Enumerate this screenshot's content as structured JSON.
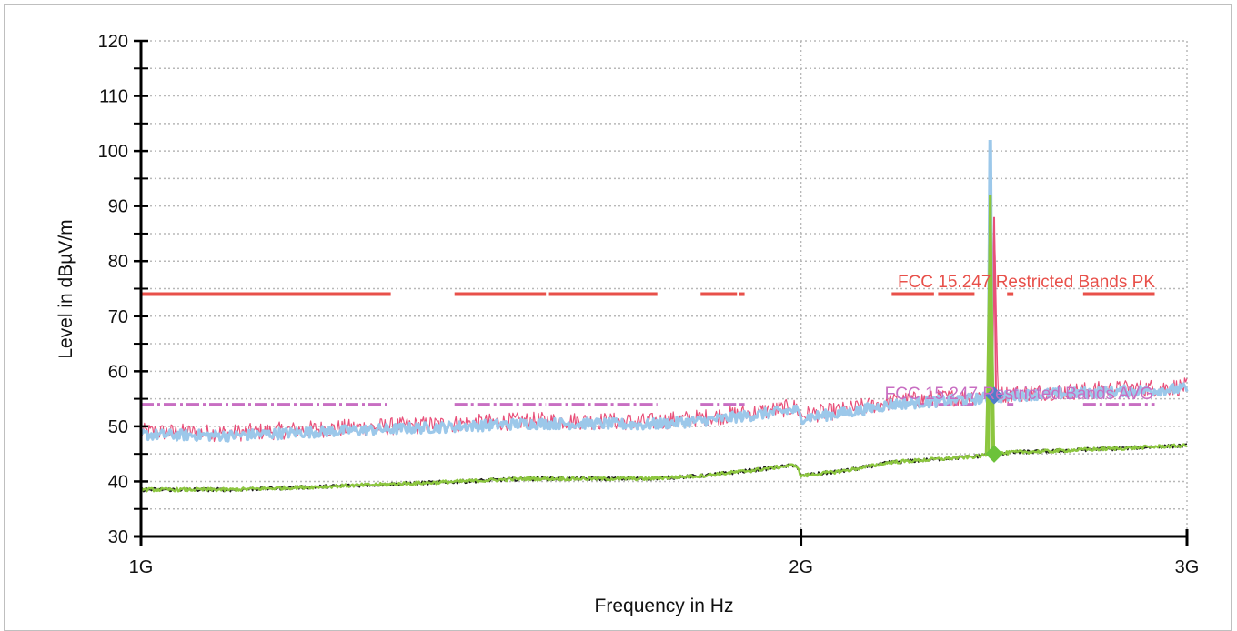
{
  "chart_data": {
    "type": "line",
    "xlabel": "Frequency in Hz",
    "ylabel": "Level in dBµV/m",
    "x_scale": "log",
    "xlim": [
      1000000000,
      3000000000
    ],
    "ylim": [
      30,
      120
    ],
    "grid": true,
    "x_ticks": [
      {
        "value": 1000000000,
        "label": "1G"
      },
      {
        "value": 2000000000,
        "label": "2G"
      },
      {
        "value": 3000000000,
        "label": "3G"
      }
    ],
    "y_ticks": [
      30,
      40,
      50,
      60,
      70,
      80,
      90,
      100,
      110,
      120
    ],
    "limit_lines": [
      {
        "name": "FCC 15.247 Restricted Bands PK",
        "level": 74,
        "color": "#e8504a",
        "segments": [
          [
            1000000000,
            1300000000
          ],
          [
            1390000000,
            1530000000
          ],
          [
            1535000000,
            1720000000
          ],
          [
            1800000000,
            1870000000
          ],
          [
            1875000000,
            1885000000
          ],
          [
            2200000000,
            2300000000
          ],
          [
            2310000000,
            2400000000
          ],
          [
            2483500000,
            2500000000
          ],
          [
            2690000000,
            2900000000
          ]
        ]
      },
      {
        "name": "FCC 15.247 Restricted Bands AVG",
        "level": 54,
        "color": "#c86ec2",
        "segments": [
          [
            1000000000,
            1300000000
          ],
          [
            1390000000,
            1530000000
          ],
          [
            1535000000,
            1720000000
          ],
          [
            1800000000,
            1870000000
          ],
          [
            1875000000,
            1885000000
          ],
          [
            2200000000,
            2300000000
          ],
          [
            2310000000,
            2400000000
          ],
          [
            2483500000,
            2500000000
          ],
          [
            2690000000,
            2900000000
          ]
        ]
      }
    ],
    "series": [
      {
        "color": "#e8507a",
        "x": [
          1000000000,
          1100000000,
          1200000000,
          1300000000,
          1400000000,
          1500000000,
          1600000000,
          1700000000,
          1800000000,
          1900000000,
          1990000000,
          2000000000,
          2100000000,
          2200000000,
          2300000000,
          2400000000,
          2420000000,
          2440000000,
          2450000000,
          2460000000,
          2480000000,
          2500000000,
          2600000000,
          2700000000,
          2800000000,
          2900000000,
          3000000000
        ],
        "values": [
          49,
          48.8,
          49.5,
          50,
          50.5,
          51,
          51,
          50.8,
          51.5,
          52.5,
          53.5,
          52,
          53,
          54.5,
          55,
          55.5,
          55.6,
          55.7,
          88,
          55.7,
          55.8,
          56,
          56.3,
          56.5,
          56.8,
          57,
          57.2
        ]
      },
      {
        "color": "#9cc8ea",
        "x": [
          1000000000,
          1100000000,
          1200000000,
          1300000000,
          1400000000,
          1500000000,
          1600000000,
          1700000000,
          1800000000,
          1900000000,
          1990000000,
          2000000000,
          2100000000,
          2200000000,
          2300000000,
          2400000000,
          2420000000,
          2435000000,
          2440000000,
          2445000000,
          2460000000,
          2480000000,
          2500000000,
          2600000000,
          2700000000,
          2800000000,
          2900000000,
          3000000000
        ],
        "values": [
          48.5,
          48.3,
          49,
          49.5,
          50,
          50.5,
          50.5,
          50.3,
          51,
          52,
          53,
          51.5,
          52.5,
          54,
          54.5,
          55,
          55.1,
          55.2,
          102,
          55.2,
          55.3,
          55.4,
          55.6,
          55.9,
          56.1,
          56.4,
          56.6,
          56.8
        ]
      },
      {
        "color": "#1a1a1a",
        "x": [
          1000000000,
          1100000000,
          1200000000,
          1300000000,
          1400000000,
          1500000000,
          1600000000,
          1700000000,
          1800000000,
          1900000000,
          1990000000,
          2000000000,
          2100000000,
          2200000000,
          2300000000,
          2400000000,
          2430000000,
          2440000000,
          2450000000,
          2460000000,
          2500000000,
          2600000000,
          2700000000,
          2800000000,
          2900000000,
          3000000000
        ],
        "values": [
          38.5,
          38.5,
          39,
          39.5,
          40,
          40.5,
          40.5,
          40.5,
          41,
          42,
          43,
          41,
          42,
          43.5,
          44,
          44.5,
          44.8,
          86,
          44.8,
          45,
          45.3,
          45.5,
          45.8,
          46,
          46.3,
          46.5
        ]
      },
      {
        "color": "#8cc63f",
        "x": [
          1000000000,
          1100000000,
          1200000000,
          1300000000,
          1400000000,
          1500000000,
          1600000000,
          1700000000,
          1800000000,
          1900000000,
          1990000000,
          2000000000,
          2100000000,
          2200000000,
          2300000000,
          2400000000,
          2430000000,
          2440000000,
          2450000000,
          2460000000,
          2500000000,
          2600000000,
          2700000000,
          2800000000,
          2900000000,
          3000000000
        ],
        "values": [
          38.5,
          38.5,
          39,
          39.5,
          40,
          40.5,
          40.5,
          40.5,
          41,
          42,
          43,
          41,
          42,
          43.5,
          44,
          44.5,
          44.8,
          92,
          44.8,
          45,
          45.3,
          45.5,
          45.8,
          46,
          46.3,
          46.5
        ]
      }
    ],
    "markers": [
      {
        "x": 2450000000,
        "y": 55.6,
        "shape": "diamond",
        "color": "#4f7fc8"
      },
      {
        "x": 2450000000,
        "y": 45,
        "shape": "diamond",
        "color": "#6cc23a"
      }
    ]
  }
}
